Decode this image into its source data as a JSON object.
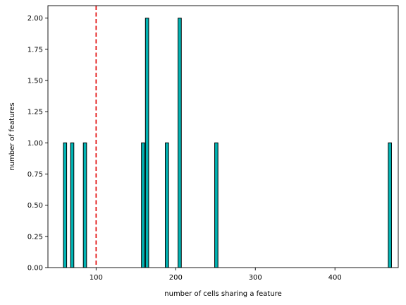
{
  "chart_data": {
    "type": "bar",
    "subtype": "histogram",
    "title": "",
    "xlabel": "number of cells sharing a feature",
    "ylabel": "number of features",
    "xlim": [
      39.5,
      479.5
    ],
    "ylim": [
      0,
      2.1
    ],
    "xticks": [
      100,
      200,
      300,
      400
    ],
    "xtick_labels": [
      "100",
      "200",
      "300",
      "400"
    ],
    "yticks": [
      0,
      0.25,
      0.5,
      0.75,
      1.0,
      1.25,
      1.5,
      1.75,
      2.0
    ],
    "ytick_labels": [
      "0.00",
      "0.25",
      "0.50",
      "0.75",
      "1.00",
      "1.25",
      "1.50",
      "1.75",
      "2.00"
    ],
    "bin_width": 4.1,
    "bins": [
      {
        "x": 61,
        "count": 1
      },
      {
        "x": 70,
        "count": 1
      },
      {
        "x": 86,
        "count": 1
      },
      {
        "x": 159,
        "count": 1
      },
      {
        "x": 164,
        "count": 2
      },
      {
        "x": 189,
        "count": 1
      },
      {
        "x": 205,
        "count": 2
      },
      {
        "x": 251,
        "count": 1
      },
      {
        "x": 469,
        "count": 1
      }
    ],
    "threshold_line": {
      "x": 100,
      "color": "#e00000",
      "style": "dashed"
    },
    "bar_color": "#00b3b3",
    "bar_edge_color": "#000000",
    "grid": false,
    "legend": "none"
  }
}
